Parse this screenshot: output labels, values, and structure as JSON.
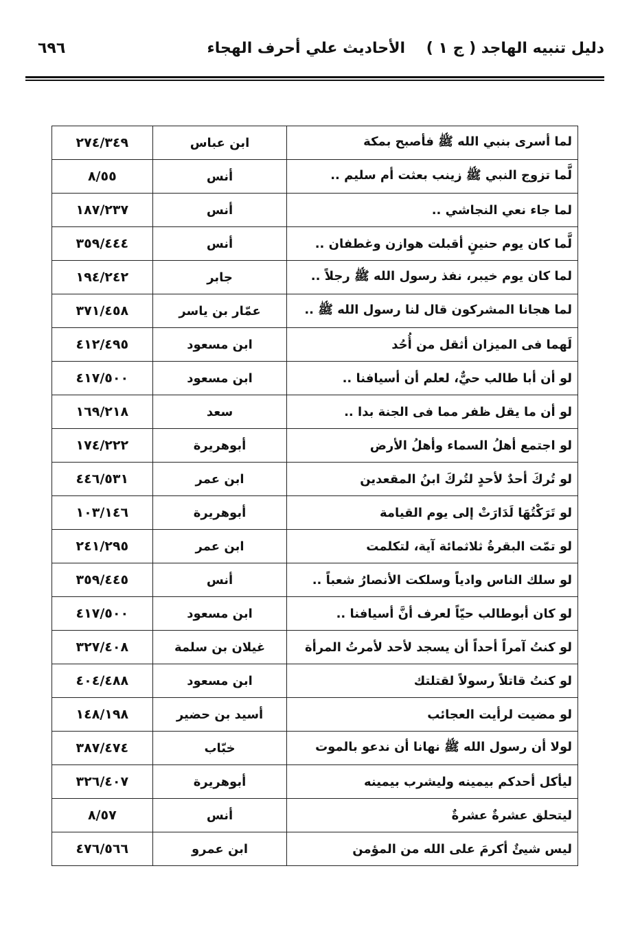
{
  "header": {
    "book_title": "دليل تنبيه الهاجد ( ج ١ )",
    "section_title": "الأحاديث علي أحرف الهجاء",
    "page_number": "٦٩٦"
  },
  "table": {
    "rows": [
      {
        "text": "لما أسرى بنبي الله ﷺ فأصبح بمكة",
        "narrator": "ابن عباس",
        "ref": "٢٧٤/٣٤٩"
      },
      {
        "text": "لَّما تزوج النبي ﷺ زينب بعثت أم سليم ..",
        "narrator": "أنس",
        "ref": "٨/٥٥"
      },
      {
        "text": "لما جاء نعي النجاشي ..",
        "narrator": "أنس",
        "ref": "١٨٧/٢٣٧"
      },
      {
        "text": "لَّما كان يوم حنينٍ أقبلت هوازن وغطفان ..",
        "narrator": "أنس",
        "ref": "٣٥٩/٤٤٤"
      },
      {
        "text": "لما كان يوم خيبر، نفذ رسول الله ﷺ رجلاً ..",
        "narrator": "جابر",
        "ref": "١٩٤/٢٤٢"
      },
      {
        "text": "لما هجانا المشركون قال لنا رسول الله ﷺ ..",
        "narrator": "عمّار بن ياسر",
        "ref": "٣٧١/٤٥٨"
      },
      {
        "text": "لَهما فى الميزان أثقل من أُحُد",
        "narrator": "ابن مسعود",
        "ref": "٤١٢/٤٩٥"
      },
      {
        "text": "لو أن أبا طالب حيٌّ، لعلم أن أسيافنا ..",
        "narrator": "ابن مسعود",
        "ref": "٤١٧/٥٠٠"
      },
      {
        "text": "لو أن ما يقل ظفر مما فى الجنة بدا ..",
        "narrator": "سعد",
        "ref": "١٦٩/٢١٨"
      },
      {
        "text": "لو اجتمع أهلُ السماء وأهلُ الأرض",
        "narrator": "أبوهريرة",
        "ref": "١٧٤/٢٢٢"
      },
      {
        "text": "لو تُركَ أحدٌ لأحدٍ لتُركَ ابنُ المقعدين",
        "narrator": "ابن عمر",
        "ref": "٤٤٦/٥٣١"
      },
      {
        "text": "لو تَرَكْتُهَا لَدَارَتْ إلى يوم القيامة",
        "narrator": "أبوهريرة",
        "ref": "١٠٣/١٤٦"
      },
      {
        "text": "لو تمّت البقرةُ ثلاثمائة آية، لتكلمت",
        "narrator": "ابن عمر",
        "ref": "٢٤١/٢٩٥"
      },
      {
        "text": "لو سلك الناس وادياً وسلكت الأنصارُ شعباً ..",
        "narrator": "أنس",
        "ref": "٣٥٩/٤٤٥"
      },
      {
        "text": "لو كان أبوطالب حيّاً لعرف أنَّ أسيافنا ..",
        "narrator": "ابن مسعود",
        "ref": "٤١٧/٥٠٠"
      },
      {
        "text": "لو كنتُ آمراً أحداً أن يسجد لأحد لأمرتُ المرأة",
        "narrator": "غيلان بن سلمة",
        "ref": "٣٢٧/٤٠٨"
      },
      {
        "text": "لو كنتُ قاتلاً رسولاً لقتلتك",
        "narrator": "ابن مسعود",
        "ref": "٤٠٤/٤٨٨"
      },
      {
        "text": "لو مضيت لرأيت العجائب",
        "narrator": "أسيد بن حضير",
        "ref": "١٤٨/١٩٨"
      },
      {
        "text": "لولا أن رسول الله ﷺ نهانا أن ندعو بالموت",
        "narrator": "خبّاب",
        "ref": "٣٨٧/٤٧٤"
      },
      {
        "text": "ليأكل أحدكم بيمينه وليشرب بيمينه",
        "narrator": "أبوهريرة",
        "ref": "٣٢٦/٤٠٧"
      },
      {
        "text": "ليتحلق عشرةٌ عشرةٌ",
        "narrator": "أنس",
        "ref": "٨/٥٧"
      },
      {
        "text": "ليس شيئٌ أكرمَ على الله من المؤمن",
        "narrator": "ابن عمرو",
        "ref": "٤٧٦/٥٦٦"
      }
    ]
  }
}
